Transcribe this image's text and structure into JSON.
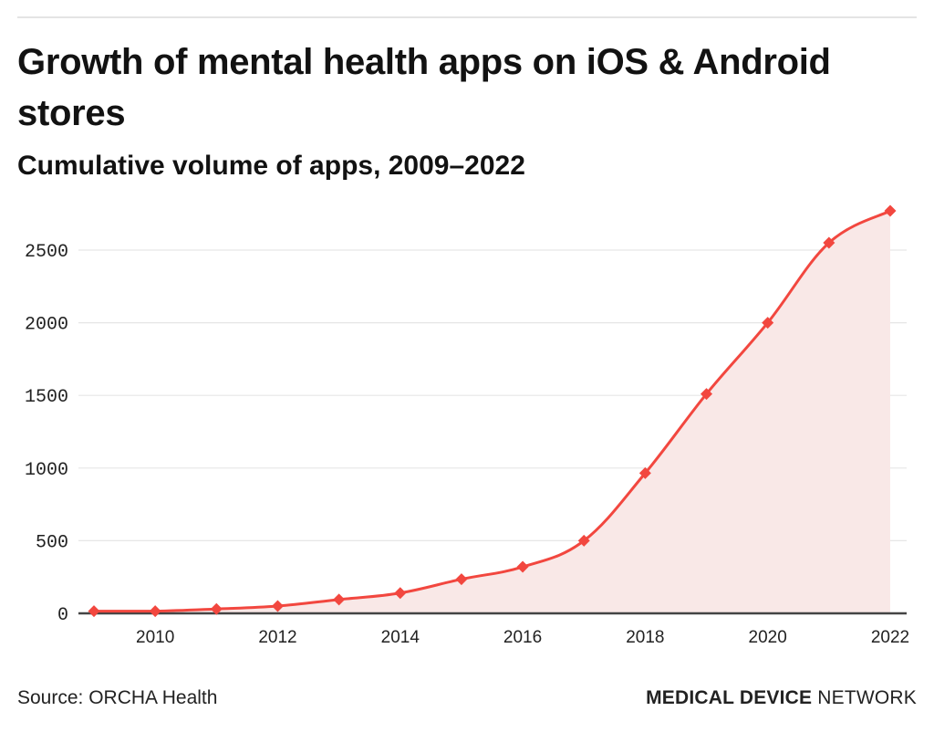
{
  "header": {
    "title": "Growth of mental health apps on iOS & Android stores",
    "subtitle": "Cumulative volume of apps, 2009–2022"
  },
  "footer": {
    "source": "Source: ORCHA Health",
    "brand_bold": "MEDICAL DEVICE",
    "brand_light": "NETWORK"
  },
  "colors": {
    "line": "#f2473f",
    "area": "#f9e8e7",
    "grid": "#e6e6e6",
    "axis": "#444444"
  },
  "chart_data": {
    "type": "area",
    "title": "Growth of mental health apps on iOS & Android stores",
    "subtitle": "Cumulative volume of apps, 2009–2022",
    "xlabel": "",
    "ylabel": "",
    "x": [
      2009,
      2010,
      2011,
      2012,
      2013,
      2014,
      2015,
      2016,
      2017,
      2018,
      2019,
      2020,
      2021,
      2022
    ],
    "series": [
      {
        "name": "Cumulative volume of apps",
        "values": [
          15,
          15,
          30,
          50,
          95,
          140,
          235,
          320,
          500,
          965,
          1510,
          2000,
          2550,
          2770
        ]
      }
    ],
    "ylim": [
      0,
      2600
    ],
    "yticks": [
      0,
      500,
      1000,
      1500,
      2000,
      2500
    ],
    "ytick_labels": [
      "0",
      "500",
      "1000",
      "1500",
      "2000",
      "2500"
    ],
    "xticks": [
      2010,
      2012,
      2014,
      2016,
      2018,
      2020,
      2022
    ],
    "xtick_labels": [
      "2010",
      "2012",
      "2014",
      "2016",
      "2018",
      "2020",
      "2022"
    ],
    "grid": true,
    "legend": "none",
    "marker": "diamond",
    "curve": "smooth"
  }
}
